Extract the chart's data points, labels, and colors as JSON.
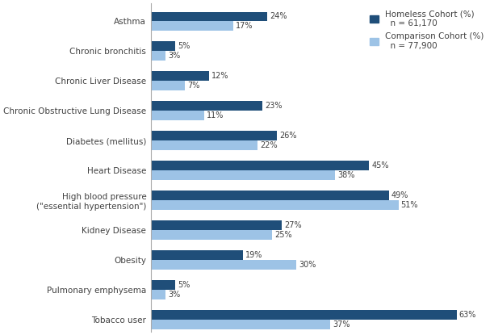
{
  "categories": [
    "Asthma",
    "Chronic bronchitis",
    "Chronic Liver Disease",
    "Chronic Obstructive Lung Disease",
    "Diabetes (mellitus)",
    "Heart Disease",
    "High blood pressure\n(\"essential hypertension\")",
    "Kidney Disease",
    "Obesity",
    "Pulmonary emphysema",
    "Tobacco user"
  ],
  "homeless": [
    24,
    5,
    12,
    23,
    26,
    45,
    49,
    27,
    19,
    5,
    63
  ],
  "comparison": [
    17,
    3,
    7,
    11,
    22,
    38,
    51,
    25,
    30,
    3,
    37
  ],
  "homeless_color": "#1F4E79",
  "comparison_color": "#9DC3E6",
  "homeless_label": "Homeless Cohort (%)\n  n = 61,170",
  "comparison_label": "Comparison Cohort (%)\n  n = 77,900",
  "bar_height": 0.32,
  "xlim": [
    0,
    70
  ],
  "value_fontsize": 7,
  "label_fontsize": 7.5,
  "legend_fontsize": 7.5,
  "background_color": "#FFFFFF",
  "text_color": "#404040"
}
